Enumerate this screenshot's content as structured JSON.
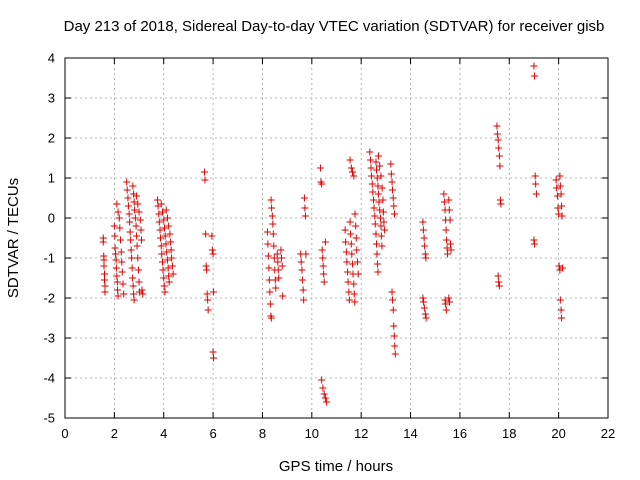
{
  "chart_data": {
    "type": "scatter",
    "title": "Day 213 of 2018, Sidereal Day-to-day VTEC variation (SDTVAR) for receiver gisb",
    "xlabel": "GPS time / hours",
    "ylabel": "SDTVAR / TECUs",
    "xlim": [
      0,
      22
    ],
    "ylim": [
      -5,
      4
    ],
    "xticks": [
      "0",
      "2",
      "4",
      "6",
      "8",
      "10",
      "12",
      "14",
      "16",
      "18",
      "20",
      "22"
    ],
    "yticks": [
      "-5",
      "-4",
      "-3",
      "-2",
      "-1",
      "0",
      "1",
      "2",
      "3",
      "4"
    ],
    "grid": true,
    "marker": "+",
    "marker_color": "#e00000",
    "series": [
      {
        "name": "SDTVAR",
        "points": [
          [
            1.55,
            -0.5
          ],
          [
            1.55,
            -0.6
          ],
          [
            1.57,
            -0.95
          ],
          [
            1.58,
            -1.05
          ],
          [
            1.58,
            -1.2
          ],
          [
            1.6,
            -1.4
          ],
          [
            1.6,
            -1.55
          ],
          [
            1.62,
            -1.7
          ],
          [
            1.62,
            -1.85
          ],
          [
            2.0,
            -0.2
          ],
          [
            2.02,
            -0.45
          ],
          [
            2.03,
            -0.75
          ],
          [
            2.05,
            -0.9
          ],
          [
            2.07,
            -1.05
          ],
          [
            2.08,
            -1.25
          ],
          [
            2.1,
            -1.45
          ],
          [
            2.12,
            -1.6
          ],
          [
            2.13,
            -1.8
          ],
          [
            2.15,
            -1.95
          ],
          [
            2.2,
            0.0
          ],
          [
            2.22,
            -0.25
          ],
          [
            2.25,
            -0.55
          ],
          [
            2.28,
            -0.85
          ],
          [
            2.3,
            -1.1
          ],
          [
            2.32,
            -1.35
          ],
          [
            2.35,
            -1.65
          ],
          [
            2.38,
            -1.9
          ],
          [
            2.1,
            0.35
          ],
          [
            2.15,
            0.15
          ],
          [
            2.5,
            0.9
          ],
          [
            2.52,
            0.7
          ],
          [
            2.55,
            0.5
          ],
          [
            2.57,
            0.3
          ],
          [
            2.6,
            0.1
          ],
          [
            2.62,
            -0.1
          ],
          [
            2.64,
            -0.35
          ],
          [
            2.66,
            -0.55
          ],
          [
            2.68,
            -0.8
          ],
          [
            2.7,
            -1.0
          ],
          [
            2.72,
            -1.25
          ],
          [
            2.74,
            -1.5
          ],
          [
            2.76,
            -1.7
          ],
          [
            2.78,
            -1.9
          ],
          [
            2.8,
            -2.05
          ],
          [
            2.75,
            0.8
          ],
          [
            2.78,
            0.6
          ],
          [
            2.8,
            0.4
          ],
          [
            2.82,
            0.2
          ],
          [
            2.85,
            0.0
          ],
          [
            2.88,
            -0.2
          ],
          [
            2.9,
            -0.45
          ],
          [
            2.92,
            -0.7
          ],
          [
            2.95,
            -1.0
          ],
          [
            2.98,
            -1.3
          ],
          [
            3.0,
            -1.6
          ],
          [
            3.02,
            -1.85
          ],
          [
            2.9,
            0.55
          ],
          [
            2.95,
            0.35
          ],
          [
            3.0,
            0.15
          ],
          [
            3.05,
            -0.05
          ],
          [
            3.08,
            -0.3
          ],
          [
            3.1,
            -0.55
          ],
          [
            3.12,
            -1.8
          ],
          [
            3.15,
            -1.9
          ],
          [
            3.75,
            0.45
          ],
          [
            3.77,
            0.3
          ],
          [
            3.8,
            0.1
          ],
          [
            3.82,
            -0.1
          ],
          [
            3.85,
            -0.3
          ],
          [
            3.87,
            -0.5
          ],
          [
            3.9,
            -0.7
          ],
          [
            3.92,
            -0.9
          ],
          [
            3.95,
            -1.1
          ],
          [
            3.97,
            -1.3
          ],
          [
            4.0,
            -1.5
          ],
          [
            4.02,
            -1.7
          ],
          [
            4.05,
            -1.85
          ],
          [
            3.9,
            0.35
          ],
          [
            3.95,
            0.15
          ],
          [
            4.0,
            -0.05
          ],
          [
            4.03,
            -0.25
          ],
          [
            4.06,
            -0.45
          ],
          [
            4.09,
            -0.65
          ],
          [
            4.12,
            -0.85
          ],
          [
            4.15,
            -1.05
          ],
          [
            4.18,
            -1.25
          ],
          [
            4.2,
            -1.45
          ],
          [
            4.22,
            -1.6
          ],
          [
            4.1,
            0.2
          ],
          [
            4.15,
            0.0
          ],
          [
            4.2,
            -0.2
          ],
          [
            4.25,
            -0.4
          ],
          [
            4.28,
            -0.6
          ],
          [
            4.3,
            -0.8
          ],
          [
            4.32,
            -1.0
          ],
          [
            4.35,
            -1.2
          ],
          [
            4.38,
            -1.4
          ],
          [
            5.65,
            1.15
          ],
          [
            5.67,
            0.95
          ],
          [
            5.7,
            -0.4
          ],
          [
            5.72,
            -1.2
          ],
          [
            5.74,
            -1.3
          ],
          [
            5.76,
            -1.9
          ],
          [
            5.78,
            -2.05
          ],
          [
            5.8,
            -2.3
          ],
          [
            5.95,
            -0.45
          ],
          [
            5.97,
            -0.8
          ],
          [
            6.0,
            -0.9
          ],
          [
            6.02,
            -1.85
          ],
          [
            6.0,
            -3.35
          ],
          [
            6.02,
            -3.5
          ],
          [
            8.2,
            -0.35
          ],
          [
            8.22,
            -0.65
          ],
          [
            8.24,
            -0.95
          ],
          [
            8.26,
            -1.25
          ],
          [
            8.28,
            -1.55
          ],
          [
            8.3,
            -1.85
          ],
          [
            8.32,
            -2.15
          ],
          [
            8.34,
            -2.45
          ],
          [
            8.36,
            -2.5
          ],
          [
            8.35,
            0.45
          ],
          [
            8.37,
            0.25
          ],
          [
            8.4,
            0.05
          ],
          [
            8.42,
            -0.15
          ],
          [
            8.44,
            -0.4
          ],
          [
            8.46,
            -0.7
          ],
          [
            8.48,
            -1.0
          ],
          [
            8.5,
            -1.3
          ],
          [
            8.52,
            -1.55
          ],
          [
            8.54,
            -1.75
          ],
          [
            8.6,
            -0.9
          ],
          [
            8.62,
            -1.1
          ],
          [
            8.64,
            -1.3
          ],
          [
            8.66,
            -1.5
          ],
          [
            8.75,
            -0.8
          ],
          [
            8.77,
            -1.0
          ],
          [
            8.8,
            -1.2
          ],
          [
            8.82,
            -1.95
          ],
          [
            9.55,
            -0.9
          ],
          [
            9.57,
            -1.1
          ],
          [
            9.6,
            -1.3
          ],
          [
            9.62,
            -1.55
          ],
          [
            9.65,
            -1.8
          ],
          [
            9.67,
            -2.05
          ],
          [
            9.7,
            0.5
          ],
          [
            9.72,
            0.25
          ],
          [
            9.74,
            0.05
          ],
          [
            9.76,
            -0.9
          ],
          [
            10.35,
            1.25
          ],
          [
            10.37,
            0.9
          ],
          [
            10.4,
            0.85
          ],
          [
            10.42,
            -0.8
          ],
          [
            10.44,
            -1.0
          ],
          [
            10.46,
            -1.2
          ],
          [
            10.48,
            -1.4
          ],
          [
            10.5,
            -1.6
          ],
          [
            10.55,
            -0.6
          ],
          [
            10.4,
            -4.05
          ],
          [
            10.45,
            -4.25
          ],
          [
            10.5,
            -4.4
          ],
          [
            10.55,
            -4.5
          ],
          [
            10.6,
            -4.6
          ],
          [
            11.35,
            -0.3
          ],
          [
            11.37,
            -0.6
          ],
          [
            11.4,
            -0.85
          ],
          [
            11.42,
            -1.1
          ],
          [
            11.45,
            -1.35
          ],
          [
            11.47,
            -1.6
          ],
          [
            11.5,
            -1.85
          ],
          [
            11.52,
            -2.05
          ],
          [
            11.55,
            -0.1
          ],
          [
            11.57,
            -0.4
          ],
          [
            11.6,
            -0.65
          ],
          [
            11.62,
            -0.9
          ],
          [
            11.65,
            -1.15
          ],
          [
            11.67,
            -1.4
          ],
          [
            11.7,
            -1.65
          ],
          [
            11.72,
            -1.9
          ],
          [
            11.74,
            -2.1
          ],
          [
            11.55,
            1.45
          ],
          [
            11.6,
            1.25
          ],
          [
            11.65,
            1.15
          ],
          [
            11.7,
            1.05
          ],
          [
            11.75,
            0.1
          ],
          [
            11.78,
            -0.2
          ],
          [
            11.8,
            -0.5
          ],
          [
            11.82,
            -0.8
          ],
          [
            11.85,
            -1.1
          ],
          [
            11.88,
            -1.4
          ],
          [
            12.35,
            1.65
          ],
          [
            12.38,
            1.45
          ],
          [
            12.4,
            1.25
          ],
          [
            12.42,
            1.05
          ],
          [
            12.45,
            0.85
          ],
          [
            12.47,
            0.65
          ],
          [
            12.5,
            0.45
          ],
          [
            12.52,
            0.25
          ],
          [
            12.55,
            0.05
          ],
          [
            12.57,
            -0.15
          ],
          [
            12.6,
            -0.4
          ],
          [
            12.62,
            -0.65
          ],
          [
            12.64,
            -0.9
          ],
          [
            12.66,
            -1.15
          ],
          [
            12.68,
            -1.35
          ],
          [
            12.6,
            1.4
          ],
          [
            12.62,
            1.2
          ],
          [
            12.65,
            1.0
          ],
          [
            12.68,
            0.8
          ],
          [
            12.7,
            0.6
          ],
          [
            12.72,
            0.4
          ],
          [
            12.75,
            0.2
          ],
          [
            12.78,
            0.0
          ],
          [
            12.8,
            -0.2
          ],
          [
            12.82,
            -0.45
          ],
          [
            12.84,
            -0.7
          ],
          [
            12.7,
            1.55
          ],
          [
            12.75,
            1.3
          ],
          [
            12.8,
            1.05
          ],
          [
            12.85,
            0.75
          ],
          [
            12.88,
            0.45
          ],
          [
            12.9,
            0.15
          ],
          [
            12.92,
            -0.1
          ],
          [
            12.95,
            -0.3
          ],
          [
            13.2,
            1.35
          ],
          [
            13.22,
            1.1
          ],
          [
            13.25,
            0.9
          ],
          [
            13.27,
            0.7
          ],
          [
            13.3,
            0.5
          ],
          [
            13.32,
            0.3
          ],
          [
            13.35,
            0.1
          ],
          [
            13.25,
            -1.85
          ],
          [
            13.27,
            -2.05
          ],
          [
            13.3,
            -2.3
          ],
          [
            13.32,
            -2.7
          ],
          [
            13.34,
            -2.95
          ],
          [
            13.36,
            -3.2
          ],
          [
            13.38,
            -3.4
          ],
          [
            14.5,
            -0.1
          ],
          [
            14.52,
            -0.3
          ],
          [
            14.55,
            -0.5
          ],
          [
            14.57,
            -0.7
          ],
          [
            14.6,
            -0.9
          ],
          [
            14.62,
            -1.0
          ],
          [
            14.5,
            -2.0
          ],
          [
            14.53,
            -2.1
          ],
          [
            14.56,
            -2.25
          ],
          [
            14.6,
            -2.4
          ],
          [
            14.63,
            -2.5
          ],
          [
            15.35,
            0.6
          ],
          [
            15.37,
            0.4
          ],
          [
            15.4,
            0.2
          ],
          [
            15.42,
            -0.05
          ],
          [
            15.44,
            -0.3
          ],
          [
            15.46,
            -0.55
          ],
          [
            15.48,
            -0.75
          ],
          [
            15.5,
            -0.9
          ],
          [
            15.4,
            -2.05
          ],
          [
            15.42,
            -2.15
          ],
          [
            15.45,
            -2.3
          ],
          [
            15.55,
            -2.0
          ],
          [
            15.58,
            -2.1
          ],
          [
            15.55,
            0.45
          ],
          [
            15.57,
            0.2
          ],
          [
            15.6,
            -0.05
          ],
          [
            15.62,
            -0.65
          ],
          [
            15.64,
            -0.8
          ],
          [
            17.5,
            2.3
          ],
          [
            17.52,
            2.1
          ],
          [
            17.55,
            1.95
          ],
          [
            17.57,
            1.75
          ],
          [
            17.6,
            1.55
          ],
          [
            17.62,
            1.3
          ],
          [
            17.64,
            0.45
          ],
          [
            17.66,
            0.35
          ],
          [
            17.55,
            -1.45
          ],
          [
            17.57,
            -1.6
          ],
          [
            17.6,
            -1.7
          ],
          [
            19.0,
            3.8
          ],
          [
            19.02,
            3.55
          ],
          [
            19.05,
            1.05
          ],
          [
            19.07,
            0.85
          ],
          [
            19.1,
            0.6
          ],
          [
            19.0,
            -0.55
          ],
          [
            19.02,
            -0.65
          ],
          [
            19.9,
            0.95
          ],
          [
            19.92,
            0.75
          ],
          [
            19.95,
            0.55
          ],
          [
            19.97,
            0.25
          ],
          [
            20.0,
            0.1
          ],
          [
            20.02,
            -1.2
          ],
          [
            20.05,
            -1.3
          ],
          [
            20.07,
            -2.05
          ],
          [
            20.1,
            -2.3
          ],
          [
            20.12,
            -2.5
          ],
          [
            20.05,
            1.05
          ],
          [
            20.07,
            0.8
          ],
          [
            20.1,
            0.6
          ],
          [
            20.12,
            0.3
          ],
          [
            20.14,
            0.05
          ],
          [
            20.16,
            -1.25
          ]
        ]
      }
    ]
  }
}
